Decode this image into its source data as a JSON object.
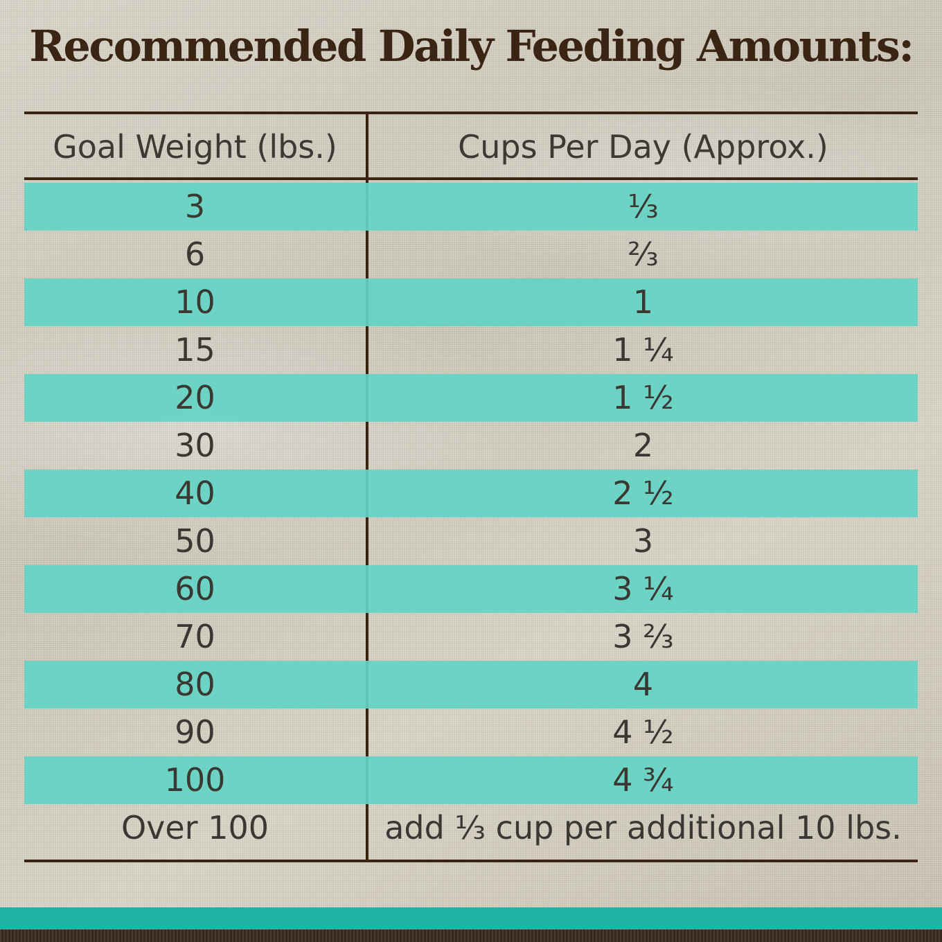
{
  "title": "Recommended Daily Feeding Amounts:",
  "table": {
    "headers": {
      "weight": "Goal Weight (lbs.)",
      "cups": "Cups Per Day (Approx.)"
    },
    "rows": [
      {
        "weight": "3",
        "cups": "⅓"
      },
      {
        "weight": "6",
        "cups": "⅔"
      },
      {
        "weight": "10",
        "cups": "1"
      },
      {
        "weight": "15",
        "cups": "1 ¼"
      },
      {
        "weight": "20",
        "cups": "1 ½"
      },
      {
        "weight": "30",
        "cups": "2"
      },
      {
        "weight": "40",
        "cups": "2 ½"
      },
      {
        "weight": "50",
        "cups": "3"
      },
      {
        "weight": "60",
        "cups": "3 ¼"
      },
      {
        "weight": "70",
        "cups": "3 ⅔"
      },
      {
        "weight": "80",
        "cups": "4"
      },
      {
        "weight": "90",
        "cups": "4 ½"
      },
      {
        "weight": "100",
        "cups": "4 ¾"
      },
      {
        "weight": "Over 100",
        "cups": "add ⅓ cup per additional 10 lbs."
      }
    ]
  },
  "colors": {
    "title": "#3a2414",
    "rule": "#3a2414",
    "stripe": "#64d4c4",
    "footer_band": "#1fb5a6"
  }
}
